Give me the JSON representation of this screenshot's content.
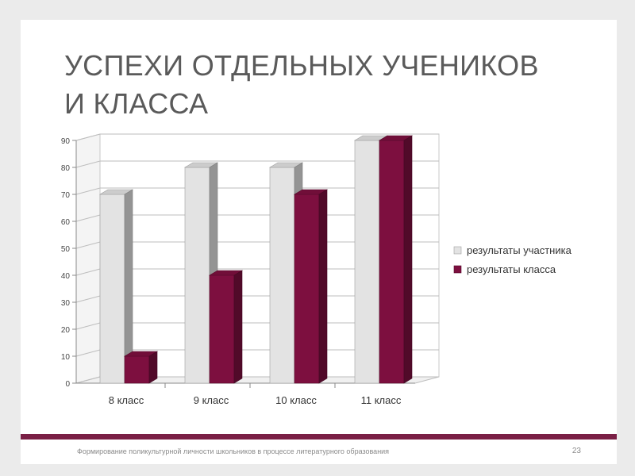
{
  "slide": {
    "title_line1": "УСПЕХИ ОТДЕЛЬНЫХ УЧЕНИКОВ",
    "title_line2": "И КЛАССА",
    "footer": "Формирование поликультурной личности школьников в процессе литературного образования",
    "page_number": "23"
  },
  "colors": {
    "accent": "#7a1f45",
    "participant": "#e3e3e3",
    "class": "#7d0f3f"
  },
  "chart_data": {
    "type": "bar",
    "categories": [
      "8 класс",
      "9 класс",
      "10 класс",
      "11 класс"
    ],
    "series": [
      {
        "name": "результаты участника",
        "values": [
          70,
          80,
          80,
          90
        ]
      },
      {
        "name": "результаты класса",
        "values": [
          10,
          40,
          70,
          90
        ]
      }
    ],
    "ylim": [
      0,
      90
    ],
    "yticks": [
      "0",
      "10",
      "20",
      "30",
      "40",
      "50",
      "60",
      "70",
      "80",
      "90"
    ],
    "grid": true,
    "legend": "right"
  }
}
